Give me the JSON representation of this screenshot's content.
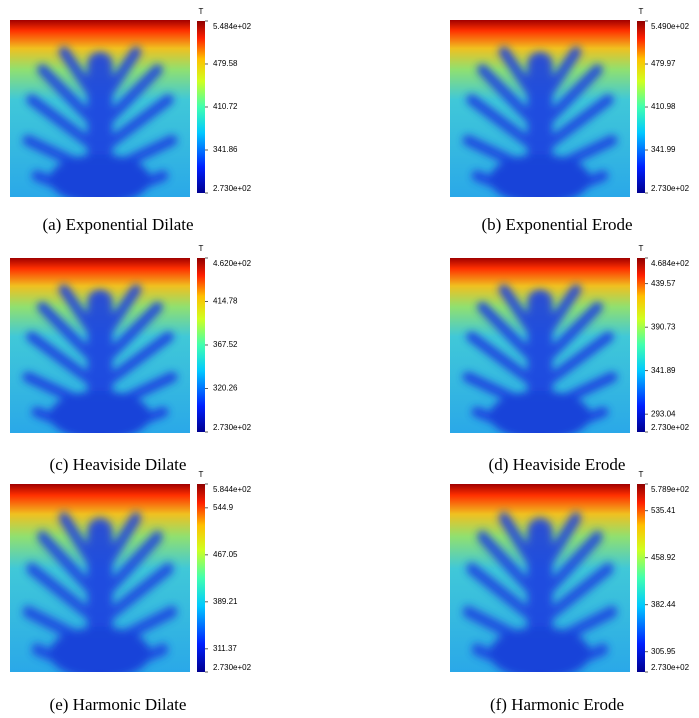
{
  "panels": [
    {
      "caption": "(a) Exponential Dilate",
      "colorbar": {
        "title": "T",
        "ticks": [
          {
            "value": 273.0,
            "label": "2.730e+02"
          },
          341.86,
          410.72,
          479.58,
          {
            "value": 548.4,
            "label": "5.484e+02"
          }
        ]
      }
    },
    {
      "caption": "(b) Exponential Erode",
      "colorbar": {
        "title": "T",
        "ticks": [
          {
            "value": 273.0,
            "label": "2.730e+02"
          },
          341.99,
          410.98,
          479.97,
          {
            "value": 549.0,
            "label": "5.490e+02"
          }
        ]
      }
    },
    {
      "caption": "(c) Heaviside Dilate",
      "colorbar": {
        "title": "T",
        "ticks": [
          {
            "value": 273.0,
            "label": "2.730e+02"
          },
          320.26,
          367.52,
          414.78,
          {
            "value": 462.0,
            "label": "4.620e+02"
          }
        ]
      }
    },
    {
      "caption": "(d) Heaviside Erode",
      "colorbar": {
        "title": "T",
        "ticks": [
          {
            "value": 273.0,
            "label": "2.730e+02"
          },
          293.04,
          341.89,
          390.73,
          439.57,
          {
            "value": 468.4,
            "label": "4.684e+02"
          }
        ]
      }
    },
    {
      "caption": "(e) Harmonic Dilate",
      "colorbar": {
        "title": "T",
        "ticks": [
          {
            "value": 273.0,
            "label": "2.730e+02"
          },
          311.37,
          389.21,
          467.05,
          544.9,
          {
            "value": 584.4,
            "label": "5.844e+02"
          }
        ]
      }
    },
    {
      "caption": "(f) Harmonic Erode",
      "colorbar": {
        "title": "T",
        "ticks": [
          {
            "value": 273.0,
            "label": "2.730e+02"
          },
          305.95,
          382.44,
          458.92,
          535.41,
          {
            "value": 578.9,
            "label": "5.789e+02"
          }
        ]
      }
    }
  ]
}
